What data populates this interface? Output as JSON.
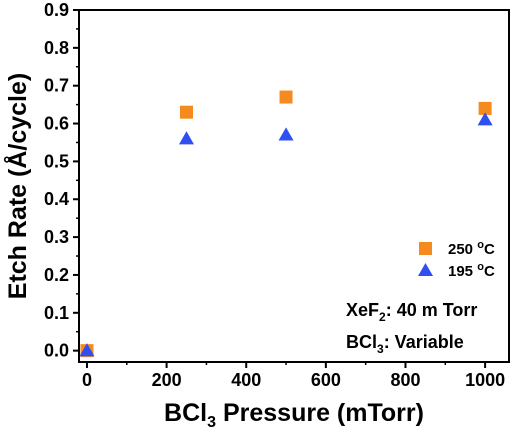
{
  "colors": {
    "series_250": "#f58a1f",
    "series_195": "#2f4ff2",
    "axis": "#000000",
    "background": "#ffffff"
  },
  "chart_data": {
    "type": "scatter",
    "title": "",
    "xlabel": "BCl3 Pressure (mTorr)",
    "xlabel_parts": {
      "pre": "BCl",
      "sub": "3",
      "post": " Pressure (mTorr)"
    },
    "ylabel": "Etch Rate (Å/cycle)",
    "xlim": [
      -20,
      1060
    ],
    "ylim": [
      -0.03,
      0.9
    ],
    "x_ticks": [
      0,
      200,
      400,
      600,
      800,
      1000
    ],
    "x_tick_labels": [
      "0",
      "200",
      "400",
      "600",
      "800",
      "1000"
    ],
    "y_ticks": [
      0.0,
      0.1,
      0.2,
      0.3,
      0.4,
      0.5,
      0.6,
      0.7,
      0.8,
      0.9
    ],
    "y_tick_labels": [
      "0.0",
      "0.1",
      "0.2",
      "0.3",
      "0.4",
      "0.5",
      "0.6",
      "0.7",
      "0.8",
      "0.9"
    ],
    "grid": false,
    "legend_position": "bottom-right",
    "series": [
      {
        "name": "250 °C",
        "name_parts": {
          "num": "250 ",
          "sup": "o",
          "unit": "C"
        },
        "marker": "square",
        "color": "#f58a1f",
        "x": [
          0,
          250,
          500,
          1000
        ],
        "y": [
          0.0,
          0.63,
          0.67,
          0.64
        ]
      },
      {
        "name": "195 °C",
        "name_parts": {
          "num": "195 ",
          "sup": "o",
          "unit": "C"
        },
        "marker": "triangle",
        "color": "#2f4ff2",
        "x": [
          0,
          250,
          500,
          1000
        ],
        "y": [
          0.0,
          0.56,
          0.57,
          0.61
        ]
      }
    ],
    "annotations": [
      {
        "text": "XeF2: 40 mTorr",
        "pre": "XeF",
        "sub": "2",
        "post": ": 40 m Torr"
      },
      {
        "text": "BCl3: Variable",
        "pre": "BCl",
        "sub": "3",
        "post": ": Variable"
      }
    ]
  }
}
